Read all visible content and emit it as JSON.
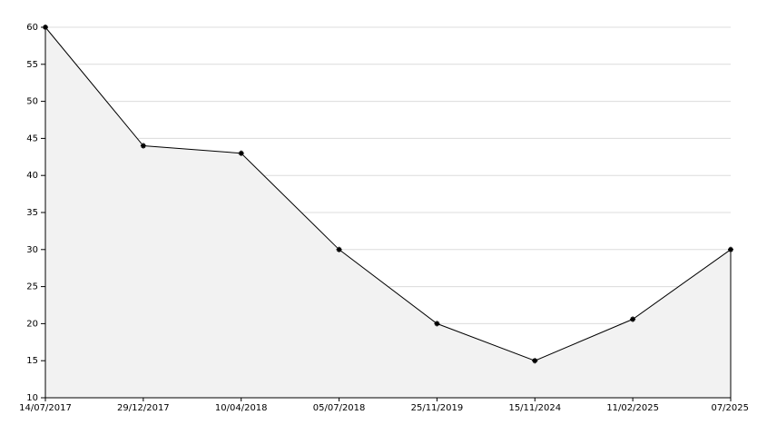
{
  "chart_data": {
    "type": "area",
    "categories": [
      "14/07/2017",
      "29/12/2017",
      "10/04/2018",
      "05/07/2018",
      "25/11/2019",
      "15/11/2024",
      "11/02/2025",
      "07/2025"
    ],
    "values": [
      60,
      44,
      43,
      30,
      20,
      15,
      20.6,
      30
    ],
    "color": "#000000",
    "fill": "#f2f2f2",
    "ylim": [
      10,
      60
    ],
    "yticks": [
      10,
      15,
      20,
      25,
      30,
      35,
      40,
      45,
      50,
      55,
      60
    ],
    "grid": true
  }
}
